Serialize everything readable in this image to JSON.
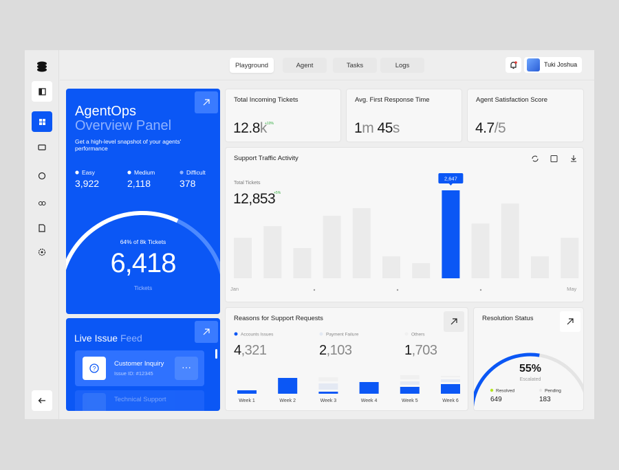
{
  "nav": {
    "tabs": [
      "Playground",
      "Agent",
      "Tasks",
      "Logs"
    ]
  },
  "user": {
    "name": "Tuki Joshua"
  },
  "overview": {
    "title": "AgentOps",
    "title_accent": "Overview Panel",
    "subtitle": "Get a high-level snapshot of your agents' performance",
    "stats": [
      {
        "label": "Easy",
        "value": "3,922"
      },
      {
        "label": "Medium",
        "value": "2,118"
      },
      {
        "label": "Difficult",
        "value": "378"
      }
    ],
    "gauge": {
      "caption": "64% of 8k Tickets",
      "value": "6,418",
      "unit": "Tickets",
      "percent": 64
    }
  },
  "live_feed": {
    "title": "Live Issue",
    "title_accent": "Feed",
    "items": [
      {
        "title": "Customer Inquiry",
        "id": "Issue ID: #12345"
      },
      {
        "title": "Technical Support"
      }
    ]
  },
  "kpis": [
    {
      "title": "Total Incoming Tickets",
      "segments": [
        "12.8",
        "k"
      ],
      "change": "+10%"
    },
    {
      "title": "Avg. First Response Time",
      "segments": [
        "1",
        "m ",
        "45",
        "s"
      ]
    },
    {
      "title": "Agent Satisfaction Score",
      "segments": [
        "4.7",
        "/5"
      ]
    }
  ],
  "traffic": {
    "title": "Support Traffic Activity",
    "total_label": "Total Tickets",
    "total": "12,853",
    "change": "+5%",
    "chart_data": {
      "type": "bar",
      "categories": [
        "Jan",
        null,
        null,
        null,
        null,
        null,
        null,
        null,
        null,
        null,
        null,
        "May"
      ],
      "values": [
        1220,
        1570,
        910,
        1880,
        2110,
        660,
        455,
        2647,
        1650,
        2250,
        660,
        1220
      ],
      "value_labels": [
        null,
        null,
        null,
        null,
        null,
        null,
        null,
        "2,647",
        null,
        null,
        null,
        null
      ],
      "color": "#ebebeb",
      "highlight_color": "#0b57f5"
    }
  },
  "reasons": {
    "title": "Reasons for Support Requests",
    "chart_data": {
      "type": "stacked_bar",
      "categories": [
        "Week 1",
        "Week 2",
        "Week 3",
        "Week 4",
        "Week 5",
        "Week 6"
      ],
      "series": [
        {
          "name": "Accounts Issues",
          "color": "#0b57f5",
          "total": [
            "4",
            ",321"
          ],
          "values": [
            5,
            23,
            3,
            17,
            10,
            14
          ]
        },
        {
          "name": "Payment Failure",
          "color": "#e4e9f3",
          "total": [
            "2",
            ",103"
          ],
          "values": [
            0,
            0,
            9,
            0,
            5,
            4
          ]
        },
        {
          "name": "Others",
          "color": "#f0f0f0",
          "total": [
            "1",
            ",703"
          ],
          "values": [
            0,
            0,
            6,
            0,
            6,
            2
          ]
        }
      ]
    }
  },
  "resolution": {
    "title": "Resolution Status",
    "percent": {
      "value": 55,
      "label": "55%"
    },
    "caption": "Escalated",
    "stats": [
      {
        "label": "Resolved",
        "value": "649",
        "color": "#b5e61d"
      },
      {
        "label": "Pending",
        "value": "183",
        "color": "#e8e8e8"
      }
    ]
  }
}
